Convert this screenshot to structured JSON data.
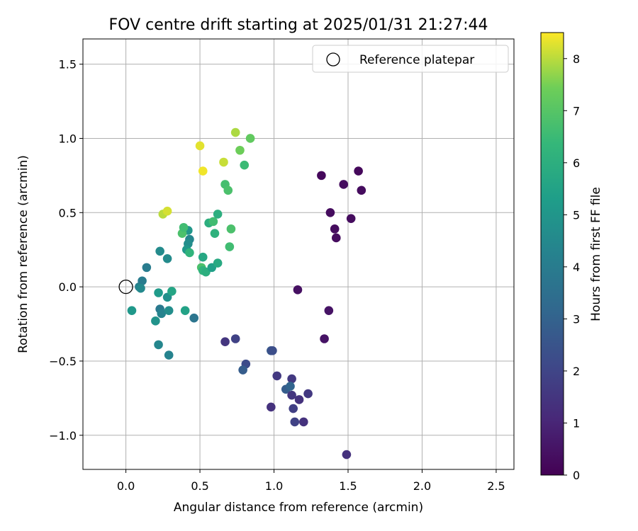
{
  "chart_data": {
    "type": "scatter",
    "title": "FOV centre drift starting at 2025/01/31 21:27:44",
    "xlabel": "Angular distance from reference (arcmin)",
    "ylabel": "Rotation from reference (arcmin)",
    "xlim": [
      -0.29,
      2.62
    ],
    "ylim": [
      -1.23,
      1.67
    ],
    "xticks": [
      0.0,
      0.5,
      1.0,
      1.5,
      2.0,
      2.5
    ],
    "xtick_labels": [
      "0.0",
      "0.5",
      "1.0",
      "1.5",
      "2.0",
      "2.5"
    ],
    "yticks": [
      -1.0,
      -0.5,
      0.0,
      0.5,
      1.0,
      1.5
    ],
    "ytick_labels": [
      "−1.0",
      "−0.5",
      "0.0",
      "0.5",
      "1.0",
      "1.5"
    ],
    "grid": true,
    "legend": {
      "placement": "top-right",
      "label": "Reference platepar"
    },
    "reference_point": {
      "x": 0.0,
      "y": 0.0,
      "marker": "open-circle"
    },
    "colorbar": {
      "label": "Hours from first FF file",
      "colormap": "viridis",
      "range": [
        0,
        8.5
      ],
      "ticks": [
        0,
        1,
        2,
        3,
        4,
        5,
        6,
        7,
        8
      ],
      "tick_labels": [
        "0",
        "1",
        "2",
        "3",
        "4",
        "5",
        "6",
        "7",
        "8"
      ]
    },
    "points": [
      {
        "x": 1.32,
        "y": 0.75,
        "hours": 0.2
      },
      {
        "x": 1.47,
        "y": 0.69,
        "hours": 0.3
      },
      {
        "x": 1.57,
        "y": 0.78,
        "hours": 0.2
      },
      {
        "x": 1.59,
        "y": 0.65,
        "hours": 0.3
      },
      {
        "x": 1.38,
        "y": 0.5,
        "hours": 0.3
      },
      {
        "x": 1.52,
        "y": 0.46,
        "hours": 0.3
      },
      {
        "x": 1.41,
        "y": 0.39,
        "hours": 0.3
      },
      {
        "x": 1.42,
        "y": 0.33,
        "hours": 0.3
      },
      {
        "x": 1.16,
        "y": -0.02,
        "hours": 0.4
      },
      {
        "x": 1.37,
        "y": -0.16,
        "hours": 0.5
      },
      {
        "x": 1.34,
        "y": -0.35,
        "hours": 0.5
      },
      {
        "x": 1.49,
        "y": -1.13,
        "hours": 1.4
      },
      {
        "x": 0.67,
        "y": -0.37,
        "hours": 1.5
      },
      {
        "x": 0.74,
        "y": -0.35,
        "hours": 1.9
      },
      {
        "x": 0.81,
        "y": -0.52,
        "hours": 2.2
      },
      {
        "x": 0.79,
        "y": -0.56,
        "hours": 2.8
      },
      {
        "x": 0.98,
        "y": -0.43,
        "hours": 2.6
      },
      {
        "x": 0.99,
        "y": -0.43,
        "hours": 2.3
      },
      {
        "x": 1.02,
        "y": -0.6,
        "hours": 1.6
      },
      {
        "x": 1.12,
        "y": -0.62,
        "hours": 1.6
      },
      {
        "x": 1.08,
        "y": -0.69,
        "hours": 2.8
      },
      {
        "x": 1.11,
        "y": -0.67,
        "hours": 3.1
      },
      {
        "x": 1.12,
        "y": -0.73,
        "hours": 1.5
      },
      {
        "x": 1.17,
        "y": -0.76,
        "hours": 1.4
      },
      {
        "x": 1.23,
        "y": -0.72,
        "hours": 1.6
      },
      {
        "x": 0.98,
        "y": -0.81,
        "hours": 1.4
      },
      {
        "x": 1.13,
        "y": -0.82,
        "hours": 1.8
      },
      {
        "x": 1.14,
        "y": -0.91,
        "hours": 1.9
      },
      {
        "x": 1.2,
        "y": -0.91,
        "hours": 1.4
      },
      {
        "x": 0.09,
        "y": 0.0,
        "hours": 4.2
      },
      {
        "x": 0.11,
        "y": 0.04,
        "hours": 4.0
      },
      {
        "x": 0.1,
        "y": -0.01,
        "hours": 4.5
      },
      {
        "x": 0.14,
        "y": 0.13,
        "hours": 4.0
      },
      {
        "x": 0.04,
        "y": -0.16,
        "hours": 5.1
      },
      {
        "x": 0.23,
        "y": 0.24,
        "hours": 4.6
      },
      {
        "x": 0.28,
        "y": 0.19,
        "hours": 4.6
      },
      {
        "x": 0.22,
        "y": -0.04,
        "hours": 5.2
      },
      {
        "x": 0.28,
        "y": -0.07,
        "hours": 4.8
      },
      {
        "x": 0.31,
        "y": -0.03,
        "hours": 5.6
      },
      {
        "x": 0.23,
        "y": -0.15,
        "hours": 3.9
      },
      {
        "x": 0.24,
        "y": -0.18,
        "hours": 4.3
      },
      {
        "x": 0.29,
        "y": -0.16,
        "hours": 4.7
      },
      {
        "x": 0.2,
        "y": -0.23,
        "hours": 4.9
      },
      {
        "x": 0.4,
        "y": -0.16,
        "hours": 5.5
      },
      {
        "x": 0.46,
        "y": -0.21,
        "hours": 3.7
      },
      {
        "x": 0.22,
        "y": -0.39,
        "hours": 4.4
      },
      {
        "x": 0.29,
        "y": -0.46,
        "hours": 4.3
      },
      {
        "x": 0.42,
        "y": 0.38,
        "hours": 5.0
      },
      {
        "x": 0.43,
        "y": 0.32,
        "hours": 4.4
      },
      {
        "x": 0.42,
        "y": 0.29,
        "hours": 4.7
      },
      {
        "x": 0.41,
        "y": 0.25,
        "hours": 5.1
      },
      {
        "x": 0.43,
        "y": 0.23,
        "hours": 6.2
      },
      {
        "x": 0.38,
        "y": 0.36,
        "hours": 6.8
      },
      {
        "x": 0.39,
        "y": 0.4,
        "hours": 6.6
      },
      {
        "x": 0.52,
        "y": 0.2,
        "hours": 5.7
      },
      {
        "x": 0.51,
        "y": 0.13,
        "hours": 6.8
      },
      {
        "x": 0.52,
        "y": 0.11,
        "hours": 6.2
      },
      {
        "x": 0.54,
        "y": 0.1,
        "hours": 6.0
      },
      {
        "x": 0.58,
        "y": 0.13,
        "hours": 5.4
      },
      {
        "x": 0.62,
        "y": 0.16,
        "hours": 5.8
      },
      {
        "x": 0.56,
        "y": 0.43,
        "hours": 6.0
      },
      {
        "x": 0.59,
        "y": 0.44,
        "hours": 6.6
      },
      {
        "x": 0.62,
        "y": 0.49,
        "hours": 6.0
      },
      {
        "x": 0.6,
        "y": 0.36,
        "hours": 6.1
      },
      {
        "x": 0.7,
        "y": 0.27,
        "hours": 6.6
      },
      {
        "x": 0.71,
        "y": 0.39,
        "hours": 6.8
      },
      {
        "x": 0.67,
        "y": 0.69,
        "hours": 6.7
      },
      {
        "x": 0.69,
        "y": 0.65,
        "hours": 6.8
      },
      {
        "x": 0.8,
        "y": 0.82,
        "hours": 6.5
      },
      {
        "x": 0.77,
        "y": 0.92,
        "hours": 7.4
      },
      {
        "x": 0.84,
        "y": 1.0,
        "hours": 7.2
      },
      {
        "x": 0.74,
        "y": 1.04,
        "hours": 7.9
      },
      {
        "x": 0.5,
        "y": 0.95,
        "hours": 8.3
      },
      {
        "x": 0.52,
        "y": 0.78,
        "hours": 8.4
      },
      {
        "x": 0.66,
        "y": 0.84,
        "hours": 8.1
      },
      {
        "x": 0.25,
        "y": 0.49,
        "hours": 8.0
      },
      {
        "x": 0.28,
        "y": 0.51,
        "hours": 8.2
      }
    ]
  }
}
